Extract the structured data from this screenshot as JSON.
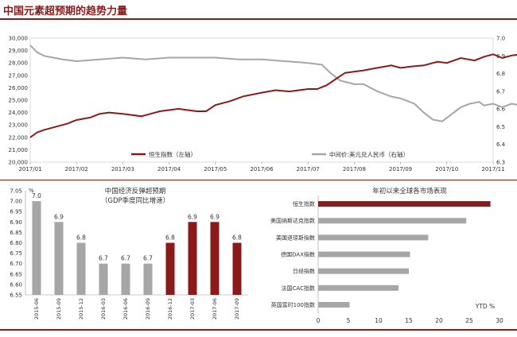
{
  "page_title": "中国元素超预期的趋势力量",
  "colors": {
    "accent": "#8B1A1A",
    "gray": "#A6A6A6"
  },
  "chart_data": [
    {
      "type": "line",
      "title": "",
      "x_ticks": [
        "2017/01",
        "2017/02",
        "2017/03",
        "2017/04",
        "2017/05",
        "2017/06",
        "2017/07",
        "2017/08",
        "2017/09",
        "2017/10",
        "2017/11"
      ],
      "y_left": {
        "min": 20000,
        "max": 30000,
        "step": 1000,
        "ticks": [
          "20,000",
          "21,000",
          "22,000",
          "23,000",
          "24,000",
          "25,000",
          "26,000",
          "27,000",
          "28,000",
          "29,000",
          "30,000"
        ]
      },
      "y_right": {
        "min": 6.3,
        "max": 7.0,
        "step": 0.1,
        "ticks": [
          "6.3",
          "6.4",
          "6.5",
          "6.6",
          "6.7",
          "6.8",
          "6.9",
          "7.0"
        ]
      },
      "series": [
        {
          "name": "恒生指数（左轴）",
          "color": "#8B1A1A",
          "axis": "left",
          "points": [
            [
              0,
              22000
            ],
            [
              0.15,
              22400
            ],
            [
              0.3,
              22600
            ],
            [
              0.5,
              22800
            ],
            [
              0.8,
              23100
            ],
            [
              1.0,
              23400
            ],
            [
              1.3,
              23600
            ],
            [
              1.5,
              23900
            ],
            [
              1.7,
              24000
            ],
            [
              2.0,
              23900
            ],
            [
              2.2,
              23800
            ],
            [
              2.4,
              23700
            ],
            [
              2.6,
              23900
            ],
            [
              2.8,
              24100
            ],
            [
              3.0,
              24200
            ],
            [
              3.2,
              24300
            ],
            [
              3.4,
              24200
            ],
            [
              3.6,
              24100
            ],
            [
              3.8,
              24100
            ],
            [
              4.0,
              24600
            ],
            [
              4.3,
              24900
            ],
            [
              4.6,
              25300
            ],
            [
              5.0,
              25600
            ],
            [
              5.3,
              25800
            ],
            [
              5.6,
              25700
            ],
            [
              6.0,
              25900
            ],
            [
              6.2,
              25900
            ],
            [
              6.4,
              26200
            ],
            [
              6.6,
              26700
            ],
            [
              6.8,
              27200
            ],
            [
              7.0,
              27300
            ],
            [
              7.2,
              27400
            ],
            [
              7.5,
              27600
            ],
            [
              7.8,
              27800
            ],
            [
              8.0,
              27600
            ],
            [
              8.2,
              27700
            ],
            [
              8.5,
              27800
            ],
            [
              8.8,
              28100
            ],
            [
              9.0,
              28000
            ],
            [
              9.3,
              28400
            ],
            [
              9.6,
              28200
            ],
            [
              9.8,
              28500
            ],
            [
              10.0,
              28700
            ],
            [
              10.2,
              28400
            ],
            [
              10.4,
              28600
            ],
            [
              10.6,
              28700
            ],
            [
              10.8,
              29100
            ],
            [
              10.9,
              29200
            ]
          ]
        },
        {
          "name": "中间价:美元兑人民币（右轴）",
          "color": "#A6A6A6",
          "axis": "right",
          "points": [
            [
              0,
              6.96
            ],
            [
              0.15,
              6.92
            ],
            [
              0.3,
              6.9
            ],
            [
              0.5,
              6.89
            ],
            [
              0.7,
              6.88
            ],
            [
              1.0,
              6.87
            ],
            [
              1.5,
              6.88
            ],
            [
              2.0,
              6.89
            ],
            [
              2.5,
              6.88
            ],
            [
              3.0,
              6.89
            ],
            [
              3.5,
              6.89
            ],
            [
              4.0,
              6.89
            ],
            [
              4.5,
              6.88
            ],
            [
              5.0,
              6.88
            ],
            [
              5.5,
              6.87
            ],
            [
              6.0,
              6.86
            ],
            [
              6.3,
              6.85
            ],
            [
              6.5,
              6.8
            ],
            [
              6.7,
              6.76
            ],
            [
              7.0,
              6.74
            ],
            [
              7.2,
              6.74
            ],
            [
              7.5,
              6.7
            ],
            [
              7.8,
              6.67
            ],
            [
              8.0,
              6.66
            ],
            [
              8.3,
              6.63
            ],
            [
              8.5,
              6.58
            ],
            [
              8.7,
              6.54
            ],
            [
              8.9,
              6.53
            ],
            [
              9.1,
              6.57
            ],
            [
              9.3,
              6.61
            ],
            [
              9.5,
              6.63
            ],
            [
              9.7,
              6.64
            ],
            [
              9.8,
              6.62
            ],
            [
              10.0,
              6.63
            ],
            [
              10.2,
              6.61
            ],
            [
              10.4,
              6.63
            ],
            [
              10.6,
              6.62
            ],
            [
              10.8,
              6.63
            ],
            [
              10.9,
              6.63
            ]
          ]
        }
      ]
    },
    {
      "type": "bar",
      "title": "中国经济反弹超预期",
      "subtitle": "（GDP季度同比增速）",
      "unit": "%",
      "categories": [
        "2015-06",
        "2015-09",
        "2015-12",
        "2016-03",
        "2016-06",
        "2016-09",
        "2016-12",
        "2017-03",
        "2017-06",
        "2017-09"
      ],
      "values": [
        7.0,
        6.9,
        6.8,
        6.7,
        6.7,
        6.7,
        6.8,
        6.9,
        6.9,
        6.8
      ],
      "value_labels": [
        "7.0",
        "6.9",
        "6.8",
        "6.7",
        "6.7",
        "6.7",
        "6.8",
        "6.9",
        "6.9",
        "6.8"
      ],
      "colors": [
        "#A6A6A6",
        "#A6A6A6",
        "#A6A6A6",
        "#A6A6A6",
        "#A6A6A6",
        "#A6A6A6",
        "#8B1A1A",
        "#8B1A1A",
        "#8B1A1A",
        "#8B1A1A"
      ],
      "ylim": [
        6.55,
        7.05
      ],
      "y_ticks": [
        "6.55",
        "6.60",
        "6.65",
        "6.70",
        "6.75",
        "6.80",
        "6.85",
        "6.90",
        "6.95",
        "7.00",
        "7.05"
      ]
    },
    {
      "type": "bar",
      "orientation": "horizontal",
      "title": "年初以来全球各市场表现",
      "xlabel": "YTD %",
      "categories": [
        "恒生指数",
        "美国纳斯达克指数",
        "美国道琼斯指数",
        "德国DAX指数",
        "日经指数",
        "法国CAC指数",
        "英国富时100指数"
      ],
      "values": [
        28.5,
        24.5,
        18.2,
        15.2,
        15.0,
        13.3,
        5.2
      ],
      "colors": [
        "#8B1A1A",
        "#A6A6A6",
        "#A6A6A6",
        "#A6A6A6",
        "#A6A6A6",
        "#A6A6A6",
        "#A6A6A6"
      ],
      "xlim": [
        0,
        30
      ],
      "x_ticks": [
        "0",
        "5",
        "10",
        "15",
        "20",
        "25",
        "30"
      ]
    }
  ]
}
